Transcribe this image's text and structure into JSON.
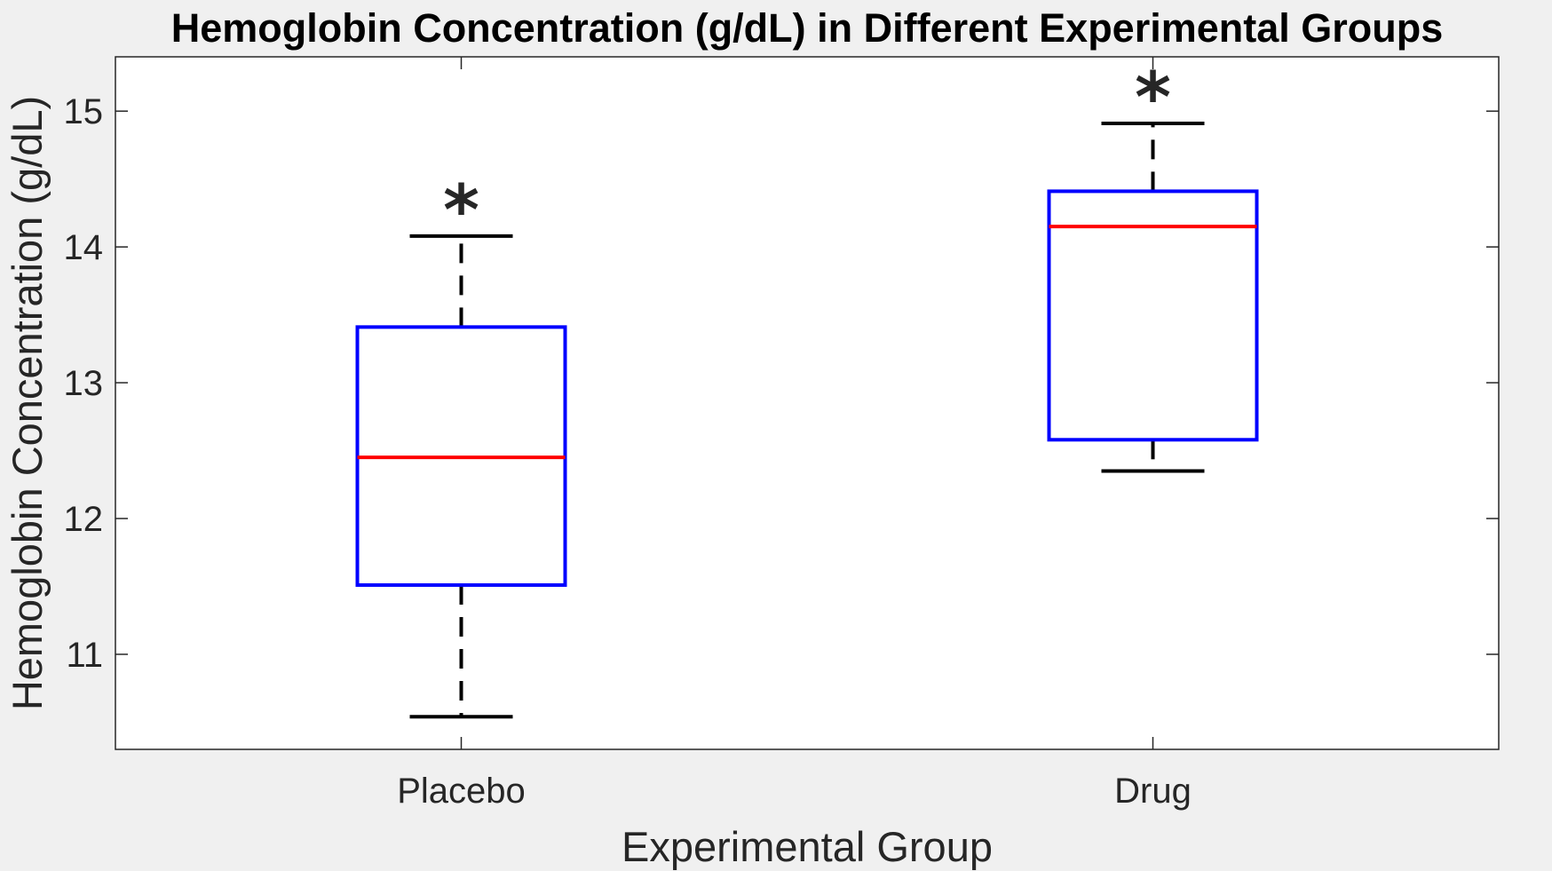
{
  "chart_data": {
    "type": "box",
    "title": "Hemoglobin Concentration (g/dL) in Different Experimental Groups",
    "xlabel": "Experimental Group",
    "ylabel": "Hemoglobin Concentration (g/dL)",
    "ylim": [
      10.3,
      15.4
    ],
    "yticks": [
      11,
      12,
      13,
      14,
      15
    ],
    "categories": [
      "Placebo",
      "Drug"
    ],
    "grid": false,
    "colors": {
      "box": "#0000ff",
      "median": "#ff0000",
      "whisker": "#000000",
      "axis": "#262626",
      "plot_background": "#ffffff",
      "figure_background": "#f0f0f0"
    },
    "boxes": [
      {
        "category": "Placebo",
        "whisker_low": 10.54,
        "q1": 11.51,
        "median": 12.45,
        "q3": 13.41,
        "whisker_high": 14.08,
        "significance_mark": "*"
      },
      {
        "category": "Drug",
        "whisker_low": 12.35,
        "q1": 12.58,
        "median": 14.15,
        "q3": 14.41,
        "whisker_high": 14.91,
        "significance_mark": "*"
      }
    ]
  }
}
